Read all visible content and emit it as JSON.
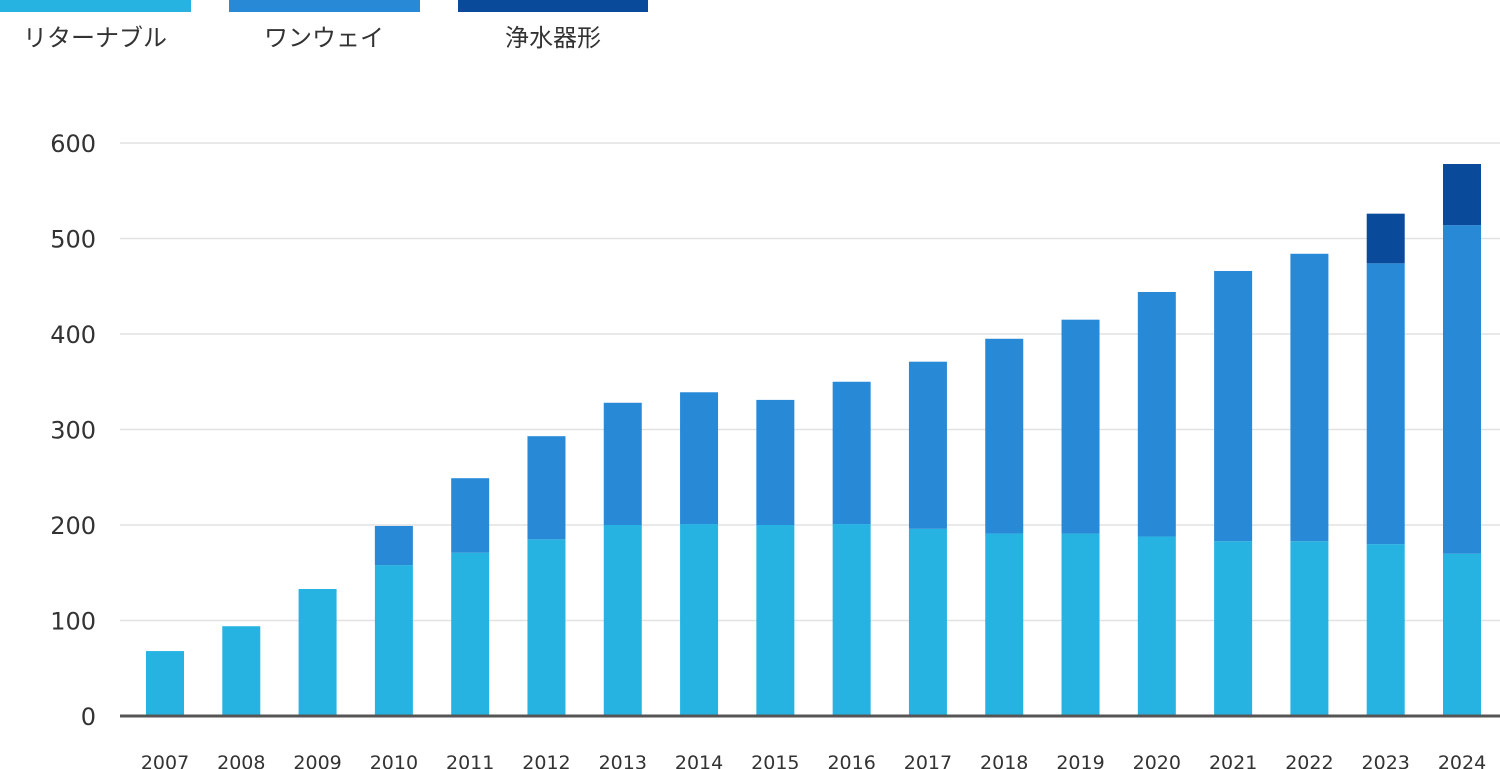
{
  "chart_data": {
    "type": "bar",
    "stacked": true,
    "title": "",
    "xlabel": "",
    "ylabel": "",
    "ylim": [
      0,
      600
    ],
    "yticks": [
      0,
      100,
      200,
      300,
      400,
      500,
      600
    ],
    "grid": true,
    "legend_position": "top-left",
    "categories": [
      "2007",
      "2008",
      "2009",
      "2010",
      "2011",
      "2012",
      "2013",
      "2014",
      "2015",
      "2016",
      "2017",
      "2018",
      "2019",
      "2020",
      "2021",
      "2022",
      "2023",
      "2024"
    ],
    "series": [
      {
        "name": "リターナブル",
        "color": "#27b3e2",
        "values": [
          68,
          94,
          133,
          158,
          171,
          185,
          200,
          201,
          200,
          201,
          196,
          191,
          191,
          188,
          183,
          183,
          180,
          170
        ]
      },
      {
        "name": "ワンウェイ",
        "color": "#2889d7",
        "values": [
          0,
          0,
          0,
          41,
          78,
          108,
          128,
          138,
          131,
          149,
          175,
          204,
          224,
          256,
          283,
          301,
          294,
          344
        ]
      },
      {
        "name": "浄水器形",
        "color": "#0a4a9b",
        "values": [
          0,
          0,
          0,
          0,
          0,
          0,
          0,
          0,
          0,
          0,
          0,
          0,
          0,
          0,
          0,
          0,
          52,
          64
        ]
      }
    ]
  },
  "colors": {
    "grid": "#e2e2e2",
    "axis": "#555555",
    "text": "#333333"
  }
}
